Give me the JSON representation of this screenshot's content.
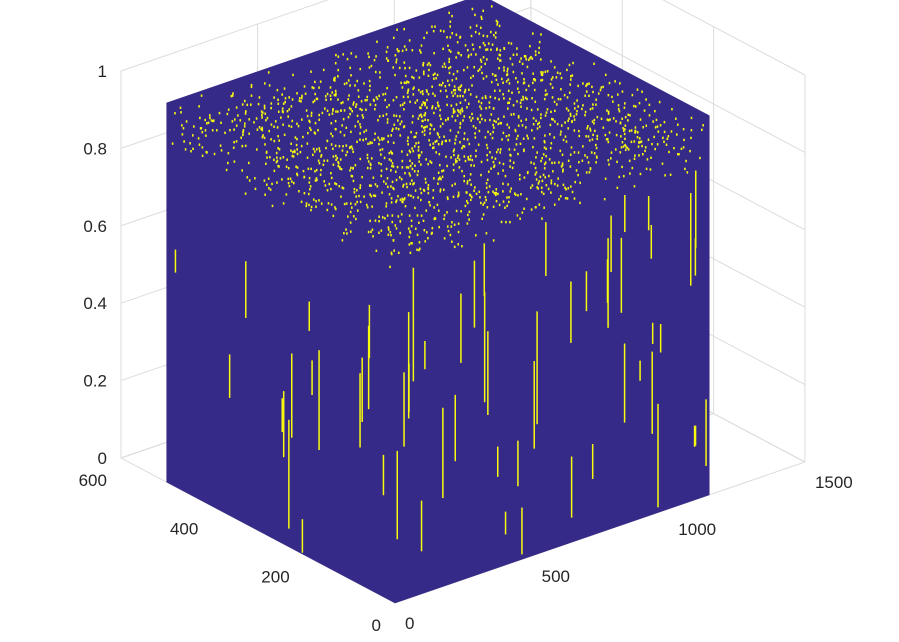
{
  "chart_data": {
    "type": "surface3d",
    "title": "",
    "xlabel": "",
    "ylabel": "",
    "zlabel": "",
    "grid": true,
    "x_ticks": [
      0,
      500,
      1000,
      1500
    ],
    "y_ticks": [
      0,
      200,
      400,
      600
    ],
    "z_ticks": [
      0,
      0.2,
      0.4,
      0.6,
      0.8,
      1
    ],
    "x_tick_labels": [
      "0",
      "500",
      "1000",
      "1500"
    ],
    "y_tick_labels": [
      "0",
      "200",
      "400",
      "600"
    ],
    "z_tick_labels": [
      "0",
      "0.2",
      "0.4",
      "0.6",
      "0.8",
      "1"
    ],
    "xlim": [
      0,
      1500
    ],
    "ylim": [
      0,
      600
    ],
    "zlim": [
      0,
      1
    ],
    "data_extent": {
      "x": [
        0,
        1150
      ],
      "y": [
        0,
        500
      ],
      "z_typical": [
        0.85,
        0.98
      ]
    },
    "colormap": {
      "low": "#352a87",
      "high": "#f9fb0e"
    }
  }
}
